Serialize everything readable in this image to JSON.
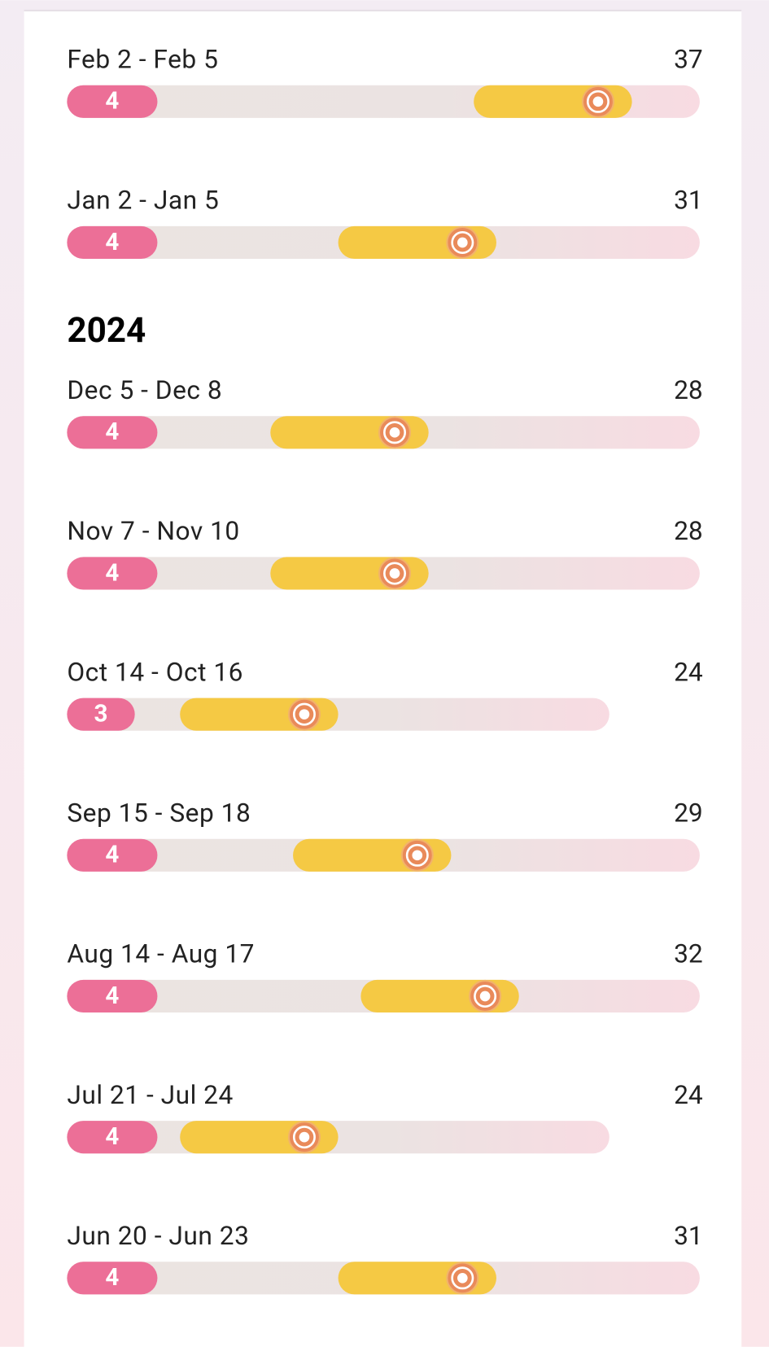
{
  "groups": [
    {
      "cycles": [
        {
          "label": "Feb 2 - Feb 5",
          "period": 4,
          "length": 37
        },
        {
          "label": "Jan 2 - Jan 5",
          "period": 4,
          "length": 31
        }
      ]
    },
    {
      "heading": "2024",
      "cycles": [
        {
          "label": "Dec 5 - Dec 8",
          "period": 4,
          "length": 28
        },
        {
          "label": "Nov 7 - Nov 10",
          "period": 4,
          "length": 28
        },
        {
          "label": "Oct 14 - Oct 16",
          "period": 3,
          "length": 24
        },
        {
          "label": "Sep 15 - Sep 18",
          "period": 4,
          "length": 29
        },
        {
          "label": "Aug 14 - Aug 17",
          "period": 4,
          "length": 32
        },
        {
          "label": "Jul 21 - Jul 24",
          "period": 4,
          "length": 24
        },
        {
          "label": "Jun 20 - Jun 23",
          "period": 4,
          "length": 31
        }
      ]
    }
  ]
}
